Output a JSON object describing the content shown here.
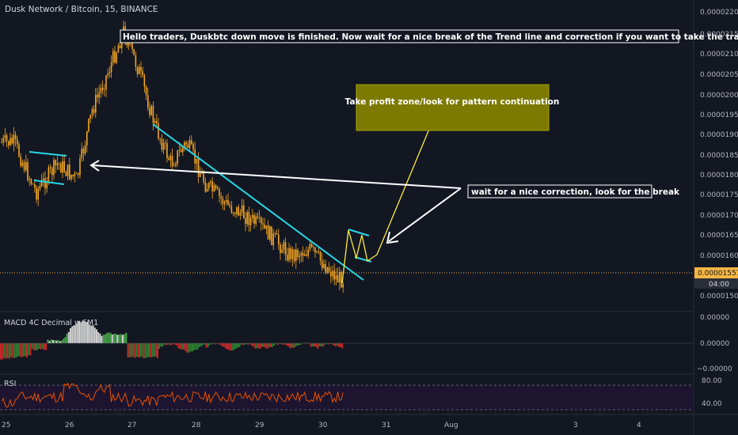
{
  "header": {
    "symbol_title": "Dusk Network / Bitcoin, 15, BINANCE"
  },
  "colors": {
    "background": "#131722",
    "candle": "#f5a623",
    "trendline": "#26d7e6",
    "arrow": "#ffffff",
    "projection": "#ffeb3b",
    "tp_zone": "#7c7a00",
    "macd_up": "#2e7d32",
    "macd_up_strong": "#43a047",
    "macd_down": "#c62828",
    "macd_neutral": "#d0d0d0",
    "rsi_line": "#e65100",
    "price_tag": "#f5b642"
  },
  "annotations": {
    "top_note": "Hello traders, Duskbtc down move is finished. Now wait for a nice break of the Trend line and correction if you want to take the trade up.",
    "tp_zone": "Take profit zone/look for pattern continuation",
    "wait_note": "wait for a nice correction, look for the break"
  },
  "price_axis": {
    "ticks": [
      "0.00002200",
      "0.00002150",
      "0.00002100",
      "0.00002050",
      "0.00002000",
      "0.00001950",
      "0.00001900",
      "0.00001850",
      "0.00001800",
      "0.00001750",
      "0.00001700",
      "0.00001650",
      "0.00001600",
      "0.00001500"
    ],
    "current_price": "0.00001557",
    "countdown": "04:00"
  },
  "macd": {
    "label": "MACD 4C Decimal w.SM1",
    "ticks": [
      "0.00000",
      "0.00000",
      "−0.00000"
    ]
  },
  "rsi": {
    "label": "RSI",
    "ticks": [
      "80.00",
      "40.00"
    ]
  },
  "time_axis": {
    "labels": [
      "25",
      "26",
      "27",
      "28",
      "29",
      "30",
      "31",
      "Aug",
      "3",
      "4"
    ]
  },
  "chart_data": {
    "type": "candlestick",
    "title": "Dusk Network / Bitcoin, 15, BINANCE",
    "ylim": [
      1.475e-05,
      2.215e-05
    ],
    "current_price": 1.557e-05,
    "close_path": [
      {
        "x": "25",
        "y": 1.88e-05
      },
      {
        "x": "25",
        "y": 1.76e-05
      },
      {
        "x": "25",
        "y": 1.83e-05
      },
      {
        "x": "26",
        "y": 1.79e-05
      },
      {
        "x": "26",
        "y": 1.96e-05
      },
      {
        "x": "26",
        "y": 2.05e-05
      },
      {
        "x": "26",
        "y": 2.15e-05
      },
      {
        "x": "27",
        "y": 2.05e-05
      },
      {
        "x": "27",
        "y": 1.92e-05
      },
      {
        "x": "27",
        "y": 1.83e-05
      },
      {
        "x": "27",
        "y": 1.88e-05
      },
      {
        "x": "28",
        "y": 1.78e-05
      },
      {
        "x": "28",
        "y": 1.73e-05
      },
      {
        "x": "28",
        "y": 1.7e-05
      },
      {
        "x": "29",
        "y": 1.66e-05
      },
      {
        "x": "29",
        "y": 1.61e-05
      },
      {
        "x": "29",
        "y": 1.62e-05
      },
      {
        "x": "30",
        "y": 1.58e-05
      },
      {
        "x": "30",
        "y": 1.55e-05
      }
    ],
    "rsi_ylim": [
      20,
      90
    ]
  }
}
